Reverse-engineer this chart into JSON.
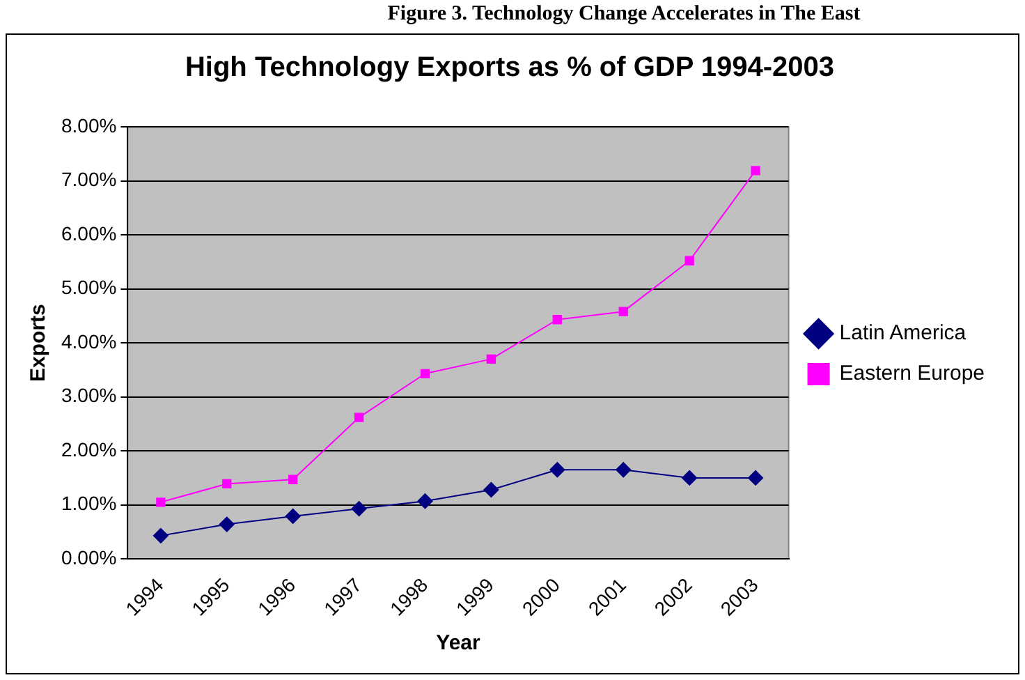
{
  "chart_data": {
    "type": "line",
    "title": "High Technology Exports as % of GDP 1994-2003",
    "xlabel": "Year",
    "ylabel": "Exports",
    "annotations": [
      "Figure 3. Technology Change Accelerates in The East"
    ],
    "categories": [
      "1994",
      "1995",
      "1996",
      "1997",
      "1998",
      "1999",
      "2000",
      "2001",
      "2002",
      "2003"
    ],
    "series": [
      {
        "name": "Latin America",
        "color": "#000080",
        "marker": "diamond",
        "values": [
          0.43,
          0.64,
          0.79,
          0.93,
          1.07,
          1.28,
          1.65,
          1.65,
          1.5,
          1.5
        ]
      },
      {
        "name": "Eastern Europe",
        "color": "#ff00ff",
        "marker": "square",
        "values": [
          1.05,
          1.39,
          1.47,
          2.62,
          3.43,
          3.7,
          4.43,
          4.58,
          5.52,
          7.19
        ]
      }
    ],
    "ylim": [
      0,
      8
    ],
    "yticks": [
      {
        "value": 0,
        "label": "0.00%"
      },
      {
        "value": 1,
        "label": "1.00%"
      },
      {
        "value": 2,
        "label": "2.00%"
      },
      {
        "value": 3,
        "label": "3.00%"
      },
      {
        "value": 4,
        "label": "4.00%"
      },
      {
        "value": 5,
        "label": "5.00%"
      },
      {
        "value": 6,
        "label": "6.00%"
      },
      {
        "value": 7,
        "label": "7.00%"
      },
      {
        "value": 8,
        "label": "8.00%"
      }
    ],
    "grid": "y",
    "legend": "right"
  }
}
